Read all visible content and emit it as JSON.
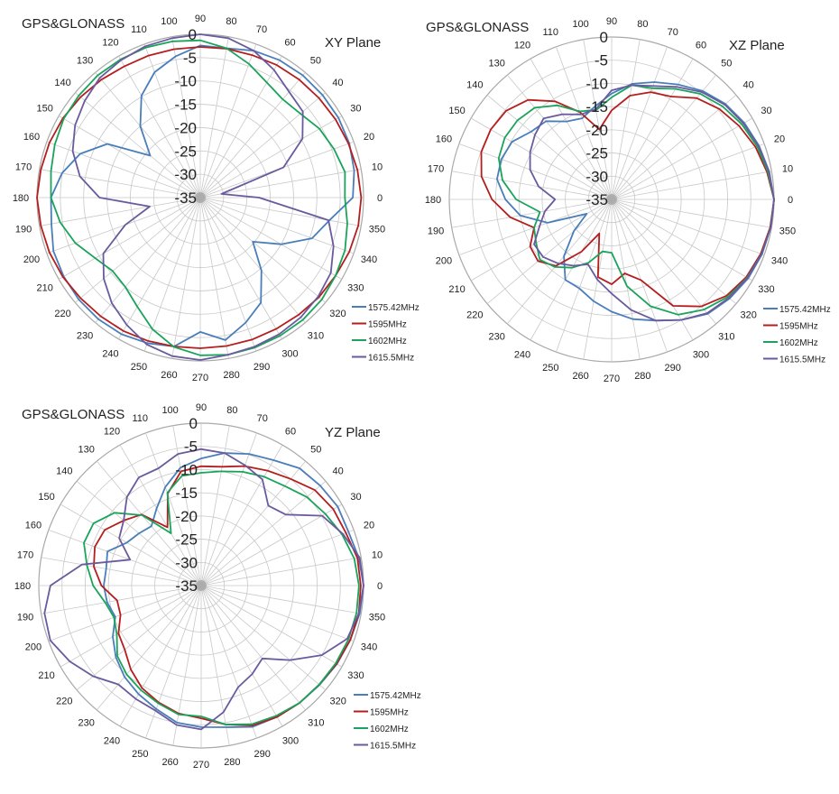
{
  "chart_data": [
    {
      "type": "polar-line",
      "title": "GPS&GLONASS",
      "plane": "XY Plane",
      "r_ticks": [
        "0",
        "-5",
        "-10",
        "-15",
        "-20",
        "-25",
        "-30",
        "-35"
      ],
      "rlim": [
        -35,
        0
      ],
      "angle_ticks": [
        "0",
        "10",
        "20",
        "30",
        "40",
        "50",
        "60",
        "70",
        "80",
        "90",
        "100",
        "110",
        "120",
        "130",
        "140",
        "150",
        "160",
        "170",
        "180",
        "190",
        "200",
        "210",
        "220",
        "230",
        "240",
        "250",
        "260",
        "270",
        "280",
        "290",
        "300",
        "310",
        "320",
        "330",
        "340",
        "350"
      ],
      "angles_deg": [
        0,
        10,
        20,
        30,
        40,
        50,
        60,
        70,
        80,
        90,
        100,
        110,
        120,
        130,
        140,
        150,
        160,
        170,
        180,
        190,
        200,
        210,
        220,
        230,
        240,
        250,
        260,
        270,
        280,
        290,
        300,
        310,
        320,
        330,
        340,
        350
      ],
      "legend_position": "bottom-right",
      "series": [
        {
          "name": "1575.42MHz",
          "color": "#4a7ebb",
          "values": [
            -2.3,
            -1.5,
            -1,
            -0.8,
            -0.8,
            -0.8,
            -1,
            -1.5,
            -2.5,
            -2.4,
            -4.3,
            -6.4,
            -9.8,
            -15,
            -21,
            -12,
            -7.6,
            -4.9,
            -3,
            -2.6,
            -1.5,
            -1.2,
            -1,
            -1,
            -1.2,
            -1.8,
            -2.6,
            -6.2,
            -4,
            -6.5,
            -9,
            -14.6,
            -20.3,
            -15,
            -9.5,
            -6.9
          ]
        },
        {
          "name": "1595MHz",
          "color": "#b41e1e",
          "values": [
            -0.5,
            -0.8,
            -1.2,
            -1.5,
            -1.8,
            -2,
            -2.2,
            -2.5,
            -2.6,
            -2.7,
            -2.7,
            -2.6,
            -2.5,
            -2,
            -1.5,
            -1,
            -0.6,
            -0.3,
            0,
            -0.3,
            -0.6,
            -1,
            -1.5,
            -1.8,
            -2,
            -2.3,
            -2.6,
            -2.7,
            -2.7,
            -2.6,
            -2.5,
            -2.2,
            -1.8,
            -1.5,
            -1,
            -0.6
          ]
        },
        {
          "name": "1602MHz",
          "color": "#1aa35a",
          "values": [
            -4,
            -3.5,
            -4.5,
            -5.5,
            -7,
            -7.5,
            -6.5,
            -4.5,
            -2.5,
            -1.3,
            -1,
            -0.8,
            -0.8,
            -0.8,
            -1,
            -1.2,
            -1.8,
            -2.5,
            -3,
            -4.5,
            -6.5,
            -9,
            -10.5,
            -10,
            -8,
            -5,
            -2.5,
            -1.2,
            -0.8,
            -0.8,
            -0.8,
            -0.8,
            -1,
            -1.5,
            -2,
            -3
          ]
        },
        {
          "name": "1615.5MHz",
          "color": "#6a5a9e",
          "values": [
            -22.4,
            -30.4,
            -16,
            -9.7,
            -6.3,
            -5.4,
            -3.4,
            -1.5,
            -0.3,
            0,
            -0.3,
            -0.5,
            -1,
            -1.5,
            -2.7,
            -4,
            -5.9,
            -8.8,
            -13.4,
            -24,
            -17.9,
            -11,
            -8,
            -5.5,
            -3.5,
            -1.5,
            -0.5,
            -0.2,
            -0.8,
            -1,
            -1.2,
            -1.5,
            -2,
            -2.7,
            -4.6,
            -7.1
          ]
        }
      ]
    },
    {
      "type": "polar-line",
      "title": "GPS&GLONASS",
      "plane": "XZ Plane",
      "r_ticks": [
        "0",
        "-5",
        "-10",
        "-15",
        "-20",
        "-25",
        "-30",
        "-35"
      ],
      "rlim": [
        -35,
        0
      ],
      "angle_ticks": [
        "0",
        "10",
        "20",
        "30",
        "40",
        "50",
        "60",
        "70",
        "80",
        "90",
        "100",
        "110",
        "120",
        "130",
        "140",
        "150",
        "160",
        "170",
        "180",
        "190",
        "200",
        "210",
        "220",
        "230",
        "240",
        "250",
        "260",
        "270",
        "280",
        "290",
        "300",
        "310",
        "320",
        "330",
        "340",
        "350"
      ],
      "angles_deg": [
        0,
        10,
        20,
        30,
        40,
        50,
        60,
        70,
        80,
        90,
        100,
        110,
        120,
        130,
        140,
        150,
        160,
        170,
        180,
        190,
        200,
        210,
        220,
        230,
        240,
        250,
        260,
        270,
        280,
        290,
        300,
        310,
        320,
        330,
        340,
        350
      ],
      "legend_position": "bottom-right",
      "series": [
        {
          "name": "1575.42MHz",
          "color": "#4a7ebb",
          "values": [
            0,
            -0.5,
            -1.2,
            -2,
            -3,
            -4.5,
            -6.4,
            -8.1,
            -9.7,
            -12.2,
            -14.6,
            -16.4,
            -15.6,
            -13,
            -12.3,
            -10.2,
            -9.7,
            -9.9,
            -12.1,
            -15,
            -20.3,
            -28.8,
            -24.4,
            -19,
            -15,
            -14.6,
            -12.7,
            -10.8,
            -8.8,
            -7.2,
            -5,
            -2.8,
            -1.8,
            -1,
            -0.5,
            -0.2
          ]
        },
        {
          "name": "1595MHz",
          "color": "#b41e1e",
          "values": [
            0,
            -1,
            -2,
            -3.3,
            -4.7,
            -6.5,
            -9.4,
            -10.4,
            -12.3,
            -15.8,
            -19.7,
            -15,
            -10.6,
            -7,
            -5.3,
            -4.9,
            -5.1,
            -6.5,
            -9.2,
            -12.8,
            -17.2,
            -14.7,
            -14.3,
            -16.3,
            -22,
            -27.2,
            -18,
            -16.7,
            -18.8,
            -16.5,
            -8.5,
            -4.9,
            -2.7,
            -1.5,
            -0.8,
            -0.3
          ]
        },
        {
          "name": "1602MHz",
          "color": "#1aa35a",
          "values": [
            0,
            -0.8,
            -1.6,
            -2.6,
            -3.8,
            -5.3,
            -7.5,
            -9.5,
            -10,
            -13,
            -15.5,
            -14.8,
            -11.6,
            -9.2,
            -8.5,
            -8.4,
            -9.1,
            -11.1,
            -14.4,
            -19.3,
            -17.2,
            -16.2,
            -14.8,
            -16,
            -18,
            -20.5,
            -23.6,
            -23.5,
            -16,
            -10.5,
            -6.3,
            -4,
            -2.3,
            -1.3,
            -0.6,
            -0.2
          ]
        },
        {
          "name": "1615.5MHz",
          "color": "#6a5a9e",
          "values": [
            0,
            -0.6,
            -1.3,
            -2.2,
            -3.2,
            -4.8,
            -7,
            -9,
            -10,
            -11.5,
            -15.3,
            -15.5,
            -13.8,
            -12.2,
            -13.4,
            -14.7,
            -16.3,
            -19,
            -22.8,
            -20.4,
            -18.5,
            -15.7,
            -15.7,
            -17,
            -18.5,
            -20.1,
            -17.4,
            -14.7,
            -10.8,
            -7.2,
            -5,
            -3,
            -2,
            -1.2,
            -0.6,
            -0.2
          ]
        }
      ]
    },
    {
      "type": "polar-line",
      "title": "GPS&GLONASS",
      "plane": "YZ Plane",
      "r_ticks": [
        "0",
        "-5",
        "-10",
        "-15",
        "-20",
        "-25",
        "-30",
        "-35"
      ],
      "rlim": [
        -35,
        0
      ],
      "angle_ticks": [
        "0",
        "10",
        "20",
        "30",
        "40",
        "50",
        "60",
        "70",
        "80",
        "90",
        "100",
        "110",
        "120",
        "130",
        "140",
        "150",
        "160",
        "170",
        "180",
        "190",
        "200",
        "210",
        "220",
        "230",
        "240",
        "250",
        "260",
        "270",
        "280",
        "290",
        "300",
        "310",
        "320",
        "330",
        "340",
        "350"
      ],
      "angles_deg": [
        0,
        10,
        20,
        30,
        40,
        50,
        60,
        70,
        80,
        90,
        100,
        110,
        120,
        130,
        140,
        150,
        160,
        170,
        180,
        190,
        200,
        210,
        220,
        230,
        240,
        250,
        260,
        270,
        280,
        290,
        300,
        310,
        320,
        330,
        340,
        350
      ],
      "legend_position": "bottom-right",
      "series": [
        {
          "name": "1575.42MHz",
          "color": "#4a7ebb",
          "values": [
            0,
            -0.5,
            -1.2,
            -1,
            -1.5,
            -2,
            -3.8,
            -4.8,
            -6,
            -7.6,
            -9.2,
            -12.4,
            -15.8,
            -18.3,
            -17.5,
            -16.5,
            -13.5,
            -14.2,
            -14,
            -14.4,
            -15.3,
            -13,
            -11,
            -9.3,
            -8,
            -6.7,
            -5,
            -4.5,
            -4,
            -2.6,
            -2.3,
            -2,
            -1.7,
            -1.2,
            -0.8,
            -0.3
          ]
        },
        {
          "name": "1595MHz",
          "color": "#b41e1e",
          "values": [
            -0.6,
            -0.8,
            -1.8,
            -2.1,
            -3,
            -5,
            -6.4,
            -7.6,
            -9,
            -9.3,
            -10,
            -13.9,
            -20.5,
            -15,
            -13.2,
            -11,
            -10.6,
            -11.5,
            -13.5,
            -16.6,
            -16.5,
            -14.4,
            -13.5,
            -11.4,
            -9.5,
            -8.2,
            -7,
            -6.4,
            -4.6,
            -2.9,
            -2.3,
            -2,
            -1.8,
            -1.3,
            -0.8,
            -0.5
          ]
        },
        {
          "name": "1602MHz",
          "color": "#1aa35a",
          "values": [
            -1,
            -1.5,
            -2.7,
            -4.1,
            -5.3,
            -7,
            -7.9,
            -8.9,
            -10,
            -10.7,
            -11,
            -13.7,
            -22,
            -15.2,
            -10.6,
            -8.2,
            -8.1,
            -10,
            -11.7,
            -14,
            -15,
            -14,
            -11.4,
            -10,
            -9,
            -8,
            -6.8,
            -6.8,
            -4.6,
            -3.2,
            -2.6,
            -2,
            -1.8,
            -1.5,
            -1.2,
            -1
          ]
        },
        {
          "name": "1615.5MHz",
          "color": "#6a5a9e",
          "values": [
            0,
            -0.3,
            -2.5,
            -4.9,
            -11.2,
            -12.5,
            -8.6,
            -7.4,
            -6,
            -5.6,
            -6.2,
            -8.1,
            -8.1,
            -10.1,
            -13.2,
            -14.6,
            -18.7,
            -8.9,
            -2.5,
            -0.7,
            -0.4,
            -2.3,
            -4.6,
            -7.2,
            -6.8,
            -6.3,
            -4.5,
            -4,
            -7.3,
            -11.7,
            -13,
            -14.5,
            -10,
            -5,
            -1.5,
            -0.5
          ]
        }
      ]
    }
  ]
}
